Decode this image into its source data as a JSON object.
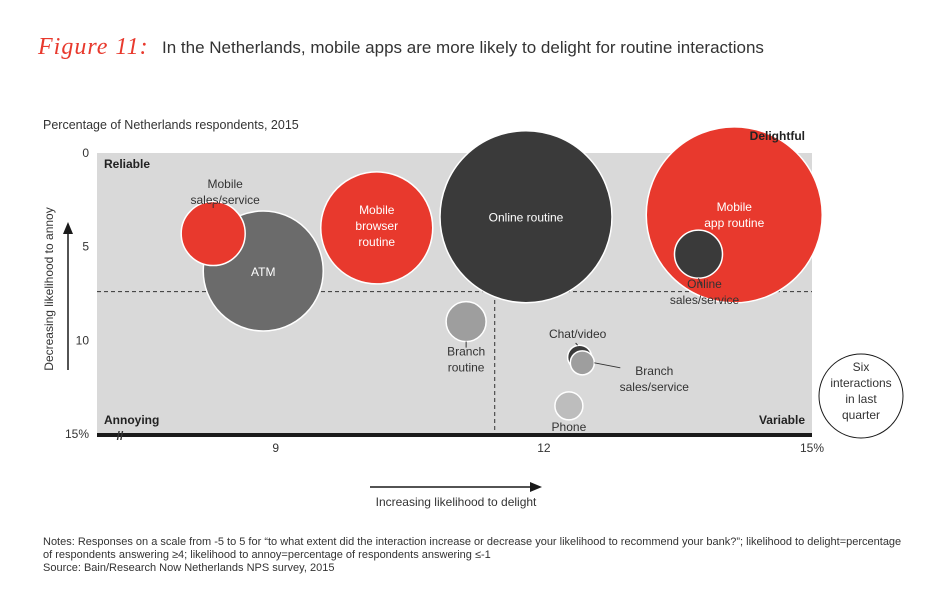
{
  "header": {
    "figure_label": "Figure 11:",
    "title": "In the Netherlands, mobile apps are more likely to delight for routine interactions",
    "subtitle": "Percentage of Netherlands respondents, 2015"
  },
  "notes": {
    "line1": "Notes: Responses on a scale from -5 to 5 for “to what extent did the interaction increase or decrease your likelihood to recommend your bank?”; likelihood to delight=percentage",
    "line2": "of respondents answering ≥4; likelihood to annoy=percentage of respondents answering ≤-1",
    "line3": "Source: Bain/Research Now Netherlands NPS survey, 2015"
  },
  "chart_data": {
    "type": "scatter",
    "subtype": "bubble",
    "xlabel": "Increasing likelihood to delight",
    "ylabel": "Decreasing likelihood to annoy",
    "xlim": [
      7,
      15
    ],
    "ylim": [
      0,
      15
    ],
    "y_inverted": true,
    "x_ticks": [
      "9",
      "12",
      "15%"
    ],
    "y_ticks": [
      "0",
      "5",
      "10",
      "15%"
    ],
    "x_tick_values": [
      9,
      12,
      15
    ],
    "y_tick_values": [
      0,
      5,
      10,
      15
    ],
    "axis_break_symbol": "//",
    "quadrant_labels": {
      "top_left": "Reliable",
      "top_right": "Delightful",
      "bottom_left": "Annoying",
      "bottom_right": "Variable"
    },
    "dividers": {
      "x": 11.45,
      "y": 7.4
    },
    "size_legend": {
      "label": "Six interactions in last quarter"
    },
    "colors": {
      "red": "#e8392d",
      "dark": "#3a3a3a",
      "mid": "#6b6b6b",
      "light": "#9e9e9e",
      "lighter": "#bdbdbd",
      "plot_bg": "#d9d9d9"
    },
    "points": [
      {
        "label": "Mobile sales/service",
        "x": 8.3,
        "y": 4.3,
        "size": 0.8,
        "color": "red"
      },
      {
        "label": "ATM",
        "x": 8.86,
        "y": 6.3,
        "size": 1.5,
        "color": "mid"
      },
      {
        "label": "Mobile browser routine",
        "x": 10.13,
        "y": 4.0,
        "size": 1.4,
        "color": "red"
      },
      {
        "label": "Online routine",
        "x": 11.8,
        "y": 3.4,
        "size": 2.15,
        "color": "dark"
      },
      {
        "label": "Mobile app routine",
        "x": 14.13,
        "y": 3.3,
        "size": 2.2,
        "color": "red"
      },
      {
        "label": "Online sales/service",
        "x": 13.73,
        "y": 5.4,
        "size": 0.6,
        "color": "dark"
      },
      {
        "label": "Branch routine",
        "x": 11.13,
        "y": 9.0,
        "size": 0.5,
        "color": "light"
      },
      {
        "label": "Chat/video",
        "x": 12.4,
        "y": 10.9,
        "size": 0.3,
        "color": "dark"
      },
      {
        "label": "Branch sales/service",
        "x": 12.43,
        "y": 11.2,
        "size": 0.3,
        "color": "light"
      },
      {
        "label": "Phone",
        "x": 12.28,
        "y": 13.5,
        "size": 0.35,
        "color": "lighter"
      }
    ]
  }
}
